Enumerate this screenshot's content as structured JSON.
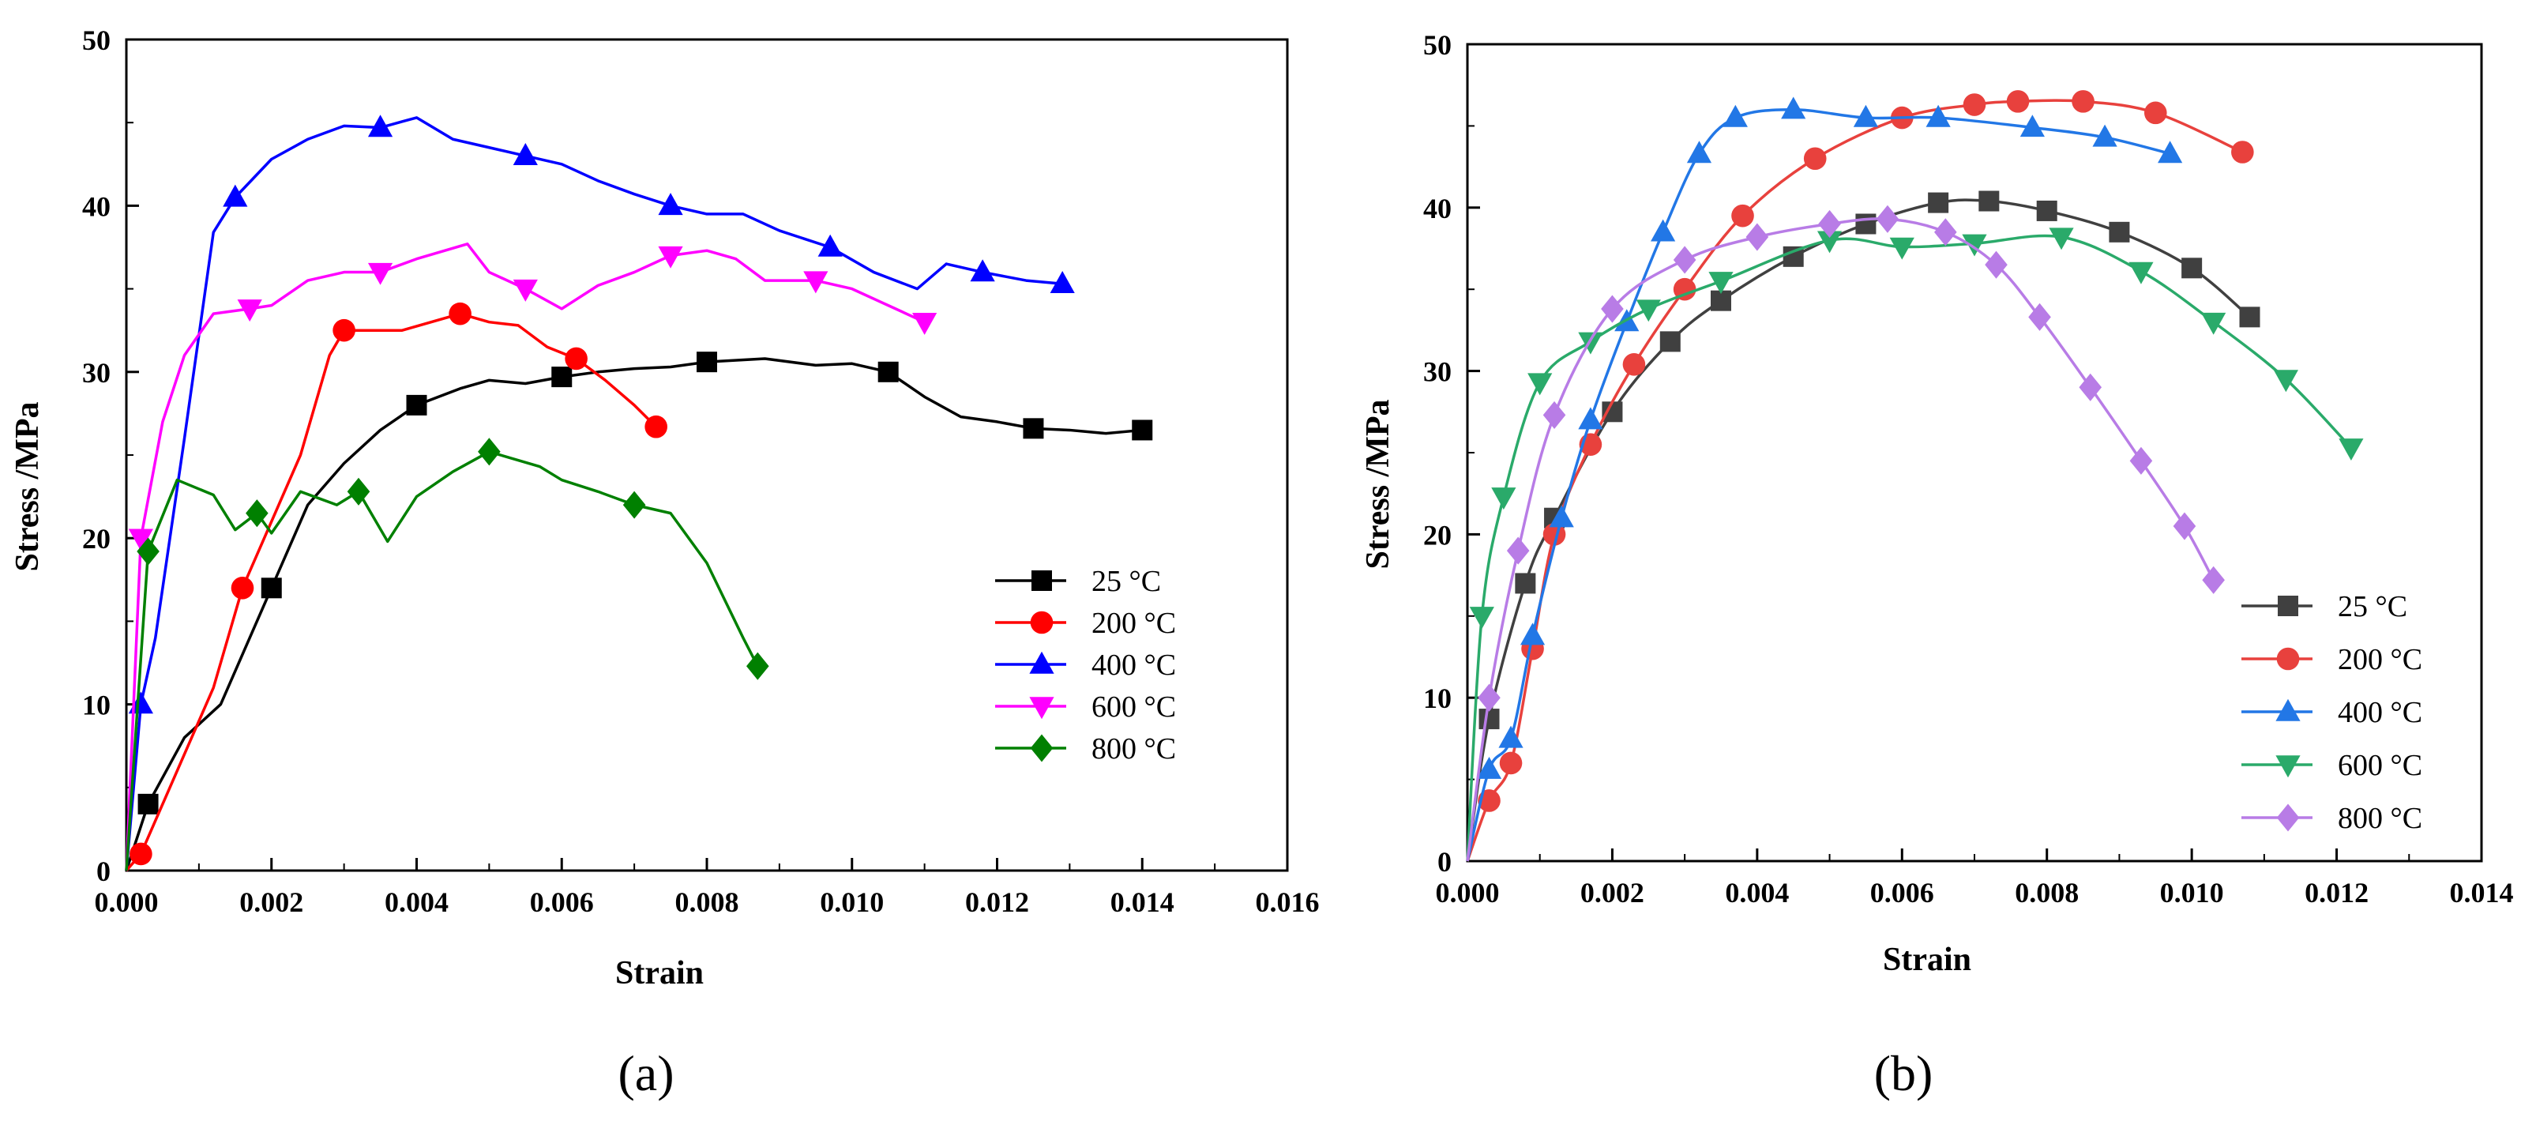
{
  "chart_data": [
    {
      "panel": "(a)",
      "type": "line",
      "xlabel": "Strain",
      "ylabel": "Stress /MPa",
      "xlim": [
        0,
        0.016
      ],
      "ylim": [
        0,
        50
      ],
      "xticks": [
        "0.000",
        "0.002",
        "0.004",
        "0.006",
        "0.008",
        "0.010",
        "0.012",
        "0.014",
        "0.016"
      ],
      "yticks": [
        "0",
        "10",
        "20",
        "30",
        "40",
        "50"
      ],
      "grid": false,
      "legend_position": "bottom-right",
      "series": [
        {
          "name": "  25 °C",
          "color": "#000000",
          "marker": "square",
          "x": [
            0,
            0.0003,
            0.0008,
            0.0013,
            0.0016,
            0.002,
            0.0025,
            0.003,
            0.0035,
            0.004,
            0.0046,
            0.005,
            0.0055,
            0.006,
            0.0065,
            0.007,
            0.0075,
            0.008,
            0.0088,
            0.0095,
            0.01,
            0.0105,
            0.011,
            0.0115,
            0.012,
            0.0125,
            0.013,
            0.0135,
            0.014
          ],
          "y": [
            0,
            4,
            8,
            10,
            13,
            17,
            22,
            24.5,
            26.5,
            28,
            29,
            29.5,
            29.3,
            29.7,
            30,
            30.2,
            30.3,
            30.6,
            30.8,
            30.4,
            30.5,
            30,
            28.5,
            27.3,
            27,
            26.6,
            26.5,
            26.3,
            26.5
          ]
        },
        {
          "name": "200 °C",
          "color": "#ff0000",
          "marker": "circle",
          "x": [
            0,
            0.0002,
            0.0005,
            0.0008,
            0.0012,
            0.0016,
            0.002,
            0.0024,
            0.0028,
            0.003,
            0.0033,
            0.0038,
            0.0042,
            0.0046,
            0.005,
            0.0054,
            0.0058,
            0.0062,
            0.0066,
            0.007,
            0.0073
          ],
          "y": [
            0,
            1,
            4,
            7,
            11,
            17,
            21,
            25,
            31,
            32.5,
            32.5,
            32.5,
            33,
            33.5,
            33,
            32.8,
            31.5,
            30.8,
            29.5,
            28,
            26.7
          ]
        },
        {
          "name": "400 °C",
          "color": "#0000ff",
          "marker": "triangle-up",
          "x": [
            0,
            0.0002,
            0.0004,
            0.0008,
            0.0012,
            0.0015,
            0.002,
            0.0025,
            0.003,
            0.0035,
            0.004,
            0.0045,
            0.005,
            0.0055,
            0.006,
            0.0065,
            0.007,
            0.0075,
            0.008,
            0.0085,
            0.009,
            0.0097,
            0.0103,
            0.0109,
            0.0113,
            0.0118,
            0.0124,
            0.0129
          ],
          "y": [
            0,
            10,
            14,
            26,
            38.4,
            40.5,
            42.8,
            44,
            44.8,
            44.7,
            45.3,
            44,
            43.5,
            43,
            42.5,
            41.5,
            40.7,
            40,
            39.5,
            39.5,
            38.5,
            37.5,
            36,
            35,
            36.5,
            36,
            35.5,
            35.3
          ]
        },
        {
          "name": "600 °C",
          "color": "#ff00ff",
          "marker": "triangle-down",
          "x": [
            0,
            0.0002,
            0.0005,
            0.0008,
            0.0012,
            0.0017,
            0.002,
            0.0025,
            0.003,
            0.0035,
            0.004,
            0.0047,
            0.005,
            0.0055,
            0.006,
            0.0065,
            0.007,
            0.0075,
            0.008,
            0.0084,
            0.0088,
            0.0095,
            0.01,
            0.0105,
            0.011
          ],
          "y": [
            0,
            20,
            27,
            31,
            33.5,
            33.8,
            34,
            35.5,
            36,
            36,
            36.8,
            37.7,
            36,
            35,
            33.8,
            35.2,
            36,
            37,
            37.3,
            36.8,
            35.5,
            35.5,
            35,
            34,
            33
          ]
        },
        {
          "name": "800 °C",
          "color": "#008000",
          "marker": "diamond",
          "x": [
            0,
            0.0003,
            0.0007,
            0.0012,
            0.0015,
            0.0018,
            0.002,
            0.0024,
            0.0029,
            0.0032,
            0.0036,
            0.004,
            0.0045,
            0.005,
            0.0057,
            0.006,
            0.0065,
            0.007,
            0.0075,
            0.008,
            0.0085,
            0.0087
          ],
          "y": [
            0,
            19.2,
            23.5,
            22.6,
            20.5,
            21.5,
            20.3,
            22.8,
            22,
            22.8,
            19.8,
            22.5,
            24,
            25.2,
            24.3,
            23.5,
            22.8,
            22,
            21.5,
            18.5,
            14,
            12.3
          ]
        }
      ]
    },
    {
      "panel": "(b)",
      "type": "line",
      "xlabel": "Strain",
      "ylabel": "Stress /MPa",
      "xlim": [
        0,
        0.014
      ],
      "ylim": [
        0,
        50
      ],
      "xticks": [
        "0.000",
        "0.002",
        "0.004",
        "0.006",
        "0.008",
        "0.010",
        "0.012",
        "0.014"
      ],
      "yticks": [
        "0",
        "10",
        "20",
        "30",
        "40",
        "50"
      ],
      "grid": false,
      "legend_position": "bottom-right",
      "series": [
        {
          "name": "  25 °C",
          "color": "#404040",
          "marker": "square",
          "x": [
            0,
            0.0003,
            0.0008,
            0.0012,
            0.002,
            0.0028,
            0.0035,
            0.0045,
            0.0055,
            0.0065,
            0.0072,
            0.008,
            0.009,
            0.01,
            0.0108
          ],
          "y": [
            0,
            8.7,
            17,
            21,
            27.5,
            31.8,
            34.3,
            37,
            39,
            40.3,
            40.4,
            39.8,
            38.5,
            36.3,
            33.3
          ]
        },
        {
          "name": "200 °C",
          "color": "#e8413d",
          "marker": "circle",
          "x": [
            0,
            0.0003,
            0.0006,
            0.0009,
            0.0012,
            0.0017,
            0.0023,
            0.003,
            0.0038,
            0.0048,
            0.006,
            0.007,
            0.0076,
            0.0085,
            0.0095,
            0.0107
          ],
          "y": [
            0,
            3.7,
            6,
            13,
            20,
            25.5,
            30.4,
            35,
            39.5,
            43,
            45.5,
            46.3,
            46.5,
            46.5,
            45.8,
            43.4
          ]
        },
        {
          "name": "400 °C",
          "color": "#2277e6",
          "marker": "triangle-up",
          "x": [
            0,
            0.0003,
            0.0006,
            0.0009,
            0.0013,
            0.0017,
            0.0022,
            0.0027,
            0.0032,
            0.0037,
            0.0045,
            0.0055,
            0.0065,
            0.0078,
            0.0088,
            0.0097
          ],
          "y": [
            0,
            5.6,
            7.5,
            13.8,
            21,
            27,
            33,
            38.5,
            43.3,
            45.5,
            46,
            45.5,
            45.5,
            44.9,
            44.3,
            43.3
          ]
        },
        {
          "name": "600 °C",
          "color": "#2aaa6a",
          "marker": "triangle-down",
          "x": [
            0,
            0.0002,
            0.0005,
            0.001,
            0.0017,
            0.0025,
            0.0035,
            0.005,
            0.006,
            0.007,
            0.0082,
            0.0093,
            0.0103,
            0.0113,
            0.0122
          ],
          "y": [
            0,
            15,
            22.3,
            29.3,
            31.8,
            33.8,
            35.5,
            38,
            37.6,
            37.8,
            38.2,
            36.1,
            33,
            29.5,
            25.3
          ]
        },
        {
          "name": "800 °C",
          "color": "#b87ce6",
          "marker": "diamond",
          "x": [
            0,
            0.0003,
            0.0007,
            0.0012,
            0.002,
            0.003,
            0.004,
            0.005,
            0.0058,
            0.0066,
            0.0073,
            0.0079,
            0.0086,
            0.0093,
            0.0099,
            0.0103
          ],
          "y": [
            0,
            10,
            19,
            27.3,
            33.8,
            36.8,
            38.2,
            39,
            39.3,
            38.5,
            36.5,
            33.3,
            29,
            24.5,
            20.5,
            17.2
          ]
        }
      ]
    }
  ],
  "panel_labels": [
    "(a)",
    "(b)"
  ]
}
